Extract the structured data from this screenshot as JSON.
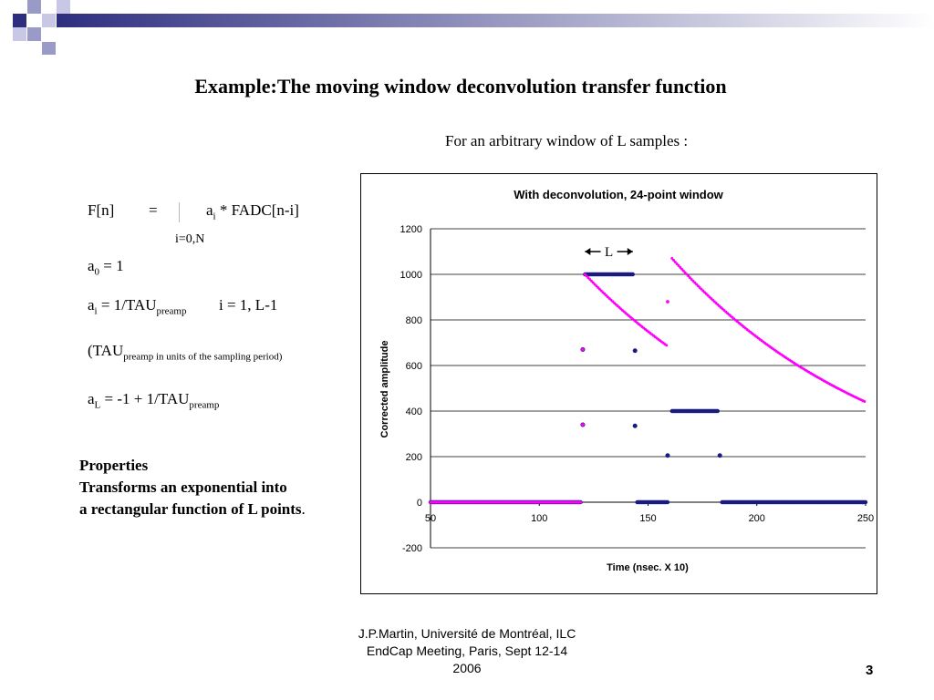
{
  "slide": {
    "title": "Example:The moving window deconvolution transfer function",
    "subtitle": "For an arbitrary window of L samples :",
    "formula": {
      "f_lhs": "F[n]",
      "equals": "=",
      "a": "a",
      "i": "i",
      "f_rhs": " * FADC[n-i]",
      "sum_range": "i=0,N",
      "a0_sub": "0",
      "a0_rhs": " = 1",
      "ai_mid": " = 1/TAU",
      "preamp": "preamp",
      "ai_range": "i = 1, L-1",
      "tau_prefix": "(TAU",
      "tau_sub": "preamp in units of the sampling period)",
      "aL_sub": "L",
      "aL_mid": " = -1 + 1/TAU"
    },
    "properties": {
      "heading": "Properties",
      "line1": "Transforms an exponential into",
      "line2": "a rectangular function of L points",
      "period": "."
    },
    "footer": {
      "line1": "J.P.Martin, Université de Montréal, ILC",
      "line2": "EndCap Meeting, Paris, Sept 12-14",
      "line3": "2006"
    },
    "page_number": "3"
  },
  "colors": {
    "series_dark": "#1a1a80",
    "series_magenta": "#ff00ff",
    "deco_blue": "#3c3c8c",
    "deco_light": "#9a9ac8"
  },
  "chart_data": {
    "type": "scatter",
    "title": "With deconvolution, 24-point window",
    "xlabel": "Time (nsec. X 10)",
    "ylabel": "Corrected amplitude",
    "xlim": [
      50,
      250
    ],
    "ylim": [
      -200,
      1200
    ],
    "x_ticks": [
      "50",
      "100",
      "150",
      "200",
      "250"
    ],
    "y_ticks": [
      "1200",
      "1000",
      "800",
      "600",
      "400",
      "200",
      "0",
      "-200"
    ],
    "gridlines": "horizontal",
    "annotation": "L",
    "series": [
      {
        "color": "#1a1a80",
        "segments": [
          {
            "from": 50,
            "to": 119,
            "value": 0
          },
          {
            "from": 121,
            "to": 143,
            "value": 1000
          },
          {
            "from": 145,
            "to": 159,
            "value": 0
          },
          {
            "from": 161,
            "to": 182,
            "value": 400
          },
          {
            "from": 184,
            "to": 250,
            "value": 0
          }
        ],
        "points": [
          [
            120,
            670
          ],
          [
            120,
            340
          ],
          [
            144,
            665
          ],
          [
            144,
            335
          ],
          [
            159,
            205
          ],
          [
            183,
            205
          ]
        ]
      },
      {
        "color": "#ff00ff",
        "segments": [
          {
            "from": 50,
            "to": 119,
            "value": 0
          }
        ],
        "curves": [
          {
            "from": 121,
            "to": 159,
            "start": 1000,
            "end": 685
          },
          {
            "from": 161,
            "to": 250,
            "start": 1070,
            "end": 440
          }
        ],
        "points": [
          [
            120,
            670
          ],
          [
            120,
            340
          ],
          [
            159,
            880
          ]
        ]
      }
    ]
  }
}
